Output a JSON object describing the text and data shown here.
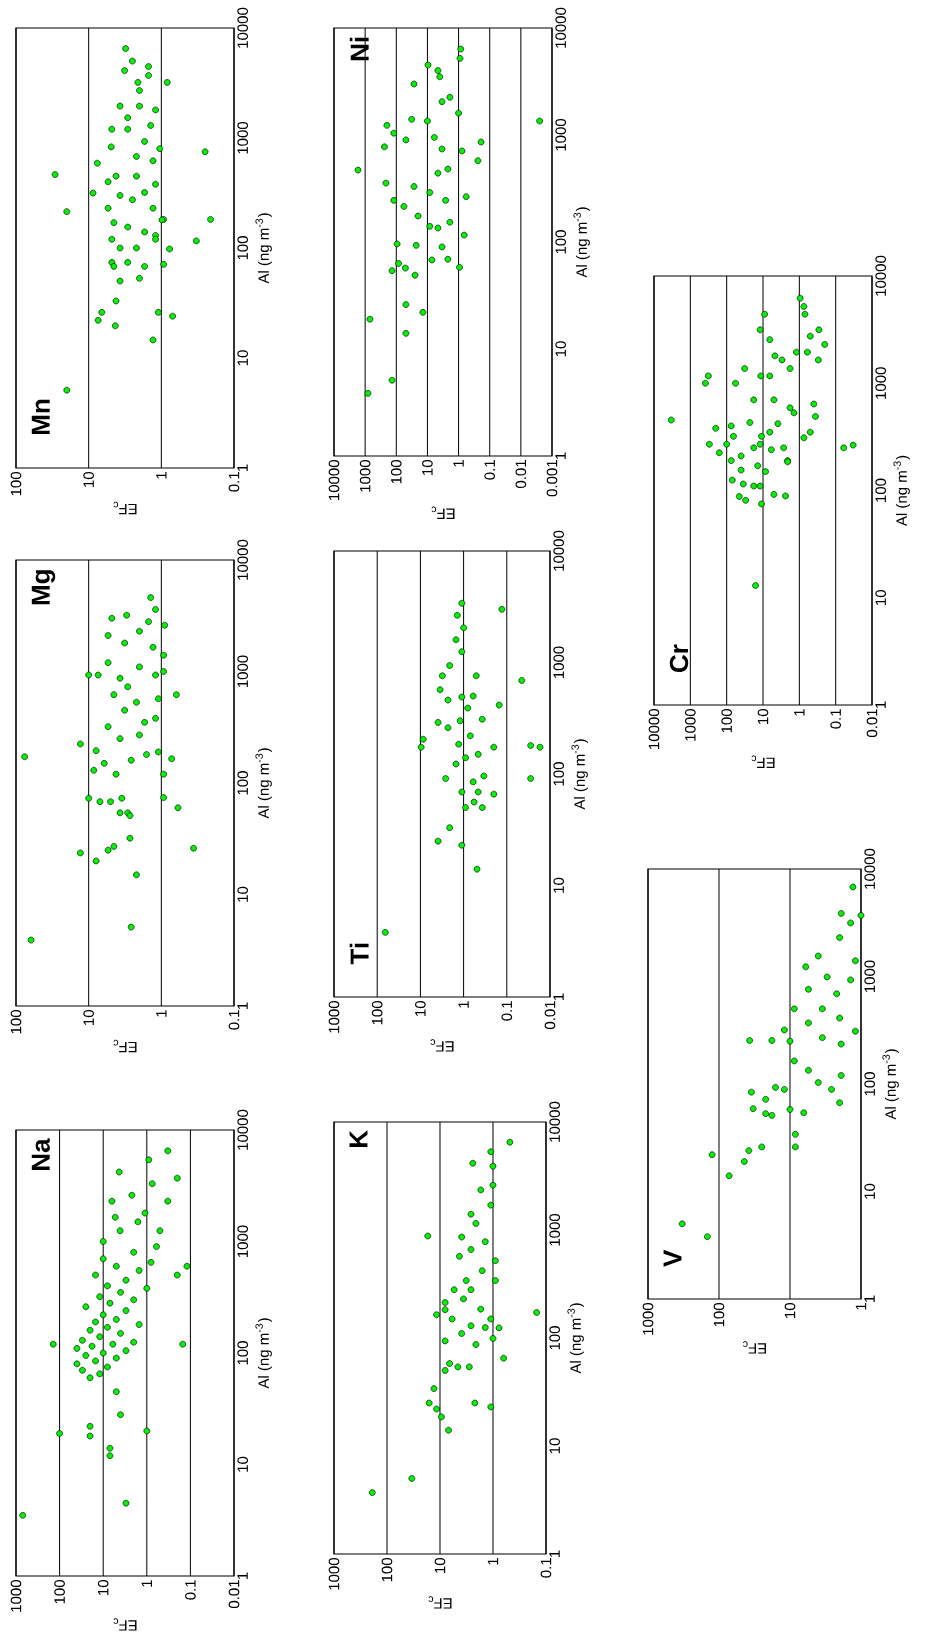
{
  "chart_data": [
    {
      "type": "scatter",
      "title": "Na",
      "xlabel": "EF$_{c}$",
      "ylabel": "Al (ng m$^{-3}$)",
      "log": "xy",
      "grid": "x",
      "marker": "circle",
      "color": "#00ee00",
      "xlim": [
        1000,
        0.01
      ],
      "ylim": [
        1,
        10000
      ],
      "xticks": [
        0.01,
        0.1,
        1,
        10,
        100,
        1000
      ],
      "yticks": [
        1,
        10,
        100,
        1000,
        10000
      ],
      "x": [
        700,
        3,
        7,
        7,
        20,
        100,
        1,
        20,
        4,
        5,
        20,
        12,
        30,
        8,
        40,
        15,
        5,
        25,
        10,
        3,
        40,
        18,
        6,
        2,
        30,
        12,
        4,
        20,
        8,
        1.5,
        15,
        5,
        10,
        3,
        25,
        7,
        2,
        12,
        4,
        1,
        8,
        3,
        15,
        1.5,
        5,
        0.8,
        10,
        2,
        0.6,
        140,
        0.15,
        0.12,
        0.2,
        4.3,
        0.33,
        0.9,
        0.2,
        6.3,
        5.3,
        2.2,
        0.75,
        0.33,
        1.1,
        10,
        4.1,
        0.5,
        1.6
      ],
      "values": [
        3.5,
        4.5,
        12,
        14,
        18,
        19,
        20,
        22,
        28,
        45,
        60,
        65,
        70,
        75,
        80,
        85,
        90,
        95,
        100,
        105,
        110,
        115,
        120,
        125,
        130,
        140,
        150,
        160,
        170,
        180,
        190,
        200,
        220,
        240,
        260,
        280,
        300,
        320,
        350,
        380,
        400,
        450,
        500,
        550,
        600,
        650,
        700,
        800,
        900,
        120,
        120,
        600,
        500,
        4200,
        6500,
        5400,
        3700,
        2300,
        1650,
        2600,
        3300,
        2300,
        1800,
        1000,
        1250,
        1250,
        1500
      ]
    },
    {
      "type": "scatter",
      "title": "Mg",
      "xlabel": "EF$_{c}$",
      "ylabel": "Al (ng m$^{-3}$)",
      "log": "xy",
      "grid": "x",
      "marker": "circle",
      "color": "#00ee00",
      "xlim": [
        100,
        0.1
      ],
      "ylim": [
        1,
        10000
      ],
      "xticks": [
        0.1,
        1,
        10,
        100
      ],
      "yticks": [
        1,
        10,
        100,
        1000,
        10000
      ],
      "x": [
        62,
        2.6,
        2.2,
        0.36,
        7.9,
        13,
        5.4,
        4.5,
        2.7,
        13,
        76,
        10,
        7,
        5,
        3.5,
        2.9,
        3.7,
        2.7,
        0.59,
        0.93,
        8.5,
        6.1,
        7.9,
        4.2,
        2.6,
        1.6,
        1.1,
        0.93,
        0.72,
        10,
        7.4,
        5.4,
        3.7,
        2.0,
        1.2,
        0.93,
        0.62,
        2.2,
        3.2,
        5.4,
        1.7,
        3.7,
        2.0,
        1.2,
        1.1,
        4.5,
        2.9,
        1.3,
        3.2,
        0.93,
        5.4,
        2.0,
        1.5,
        3.0,
        1.2,
        1.4,
        4.8,
        0.9
      ],
      "values": [
        3.9,
        5.1,
        15,
        26,
        20,
        23.6,
        25,
        27,
        32,
        224,
        172,
        73,
        68,
        68,
        73,
        54,
        54,
        51,
        60,
        74,
        130,
        150,
        195,
        120,
        160,
        180,
        190,
        120,
        165,
        930,
        930,
        1200,
        870,
        1100,
        930,
        1000,
        620,
        530,
        450,
        320,
        350,
        250,
        270,
        380,
        570,
        620,
        730,
        1650,
        1800,
        1400,
        2100,
        2300,
        2800,
        3200,
        3600,
        4600,
        3000,
        2600
      ]
    },
    {
      "type": "scatter",
      "title": "Mn",
      "xlabel": "EF$_{c}$",
      "ylabel": "Al (ng m$^{-3}$)",
      "log": "xy",
      "grid": "x",
      "marker": "circle",
      "color": "#00ee00",
      "xlim": [
        100,
        0.1
      ],
      "ylim": [
        1,
        10000
      ],
      "xticks": [
        0.1,
        1,
        10,
        100
      ],
      "yticks": [
        1,
        10,
        100,
        1000,
        10000
      ],
      "x": [
        20,
        29,
        20,
        7.6,
        8.7,
        1.3,
        1.1,
        0.7,
        7.4,
        6.6,
        4.3,
        4.2,
        3.7,
        2.0,
        0.93,
        0.77,
        0.33,
        0.21,
        0.25,
        0.83,
        3.1,
        0.93,
        1.05,
        1.4,
        1.5,
        1.5,
        2.5,
        2.1,
        3.2,
        3.7,
        2.0,
        2.9,
        4.8,
        4.9,
        1.7,
        4.2,
        2.2,
        1.3,
        5.4,
        3.7,
        2.5,
        1.7,
        1.2,
        1.3,
        5.4,
        4.5,
        2.9,
        1.7,
        1.2,
        0.98,
        4.8,
        3.7,
        2.2,
        1.2,
        2.9,
        4.8,
        1.7,
        4.5,
        2.9,
        2.0,
        1.2,
        2.2
      ],
      "values": [
        5.1,
        465,
        214,
        590,
        316,
        14.6,
        26,
        24,
        22,
        26,
        19.6,
        33,
        50,
        53,
        71,
        98,
        116,
        182,
        750,
        3200,
        6500,
        182,
        800,
        1300,
        4460,
        3700,
        5000,
        3200,
        4100,
        1950,
        1950,
        1200,
        1200,
        830,
        930,
        450,
        450,
        620,
        400,
        300,
        275,
        320,
        380,
        230,
        230,
        170,
        155,
        140,
        130,
        180,
        120,
        100,
        100,
        120,
        74,
        74,
        68,
        68,
        1530,
        2700,
        1800,
        680
      ]
    },
    {
      "type": "scatter",
      "title": "K",
      "xlabel": "EF$_{c}$",
      "ylabel": "Al (ng m$^{-3}$)",
      "log": "xy",
      "grid": "x",
      "marker": "circle",
      "color": "#00ee00",
      "xlim": [
        1000,
        0.1
      ],
      "ylim": [
        1,
        10000
      ],
      "xticks": [
        0.1,
        1,
        10,
        100,
        1000
      ],
      "yticks": [
        1,
        10,
        100,
        1000,
        10000
      ],
      "x": [
        190,
        34,
        6.9,
        9.4,
        11.6,
        16,
        13,
        2.2,
        1.1,
        8,
        6.6,
        4.6,
        2.8,
        0.63,
        0.15,
        0.77,
        1.0,
        8,
        11.6,
        8,
        8,
        17,
        2.4,
        0.48,
        1.1,
        1.0,
        1.7,
        1.1,
        2.1,
        3.9,
        2.6,
        4.3,
        0.9,
        1.6,
        3.2,
        5.4,
        0.9,
        3.6,
        1.7,
        5.9,
        2.6,
        3.9,
        1.4,
        2.1,
        1.1,
        2.6,
        1.4,
        2.6,
        1.0
      ],
      "values": [
        3.7,
        5.0,
        14,
        18.6,
        22,
        25,
        34,
        25,
        23,
        50,
        58,
        54,
        54,
        65,
        172,
        124,
        99,
        94,
        164,
        183,
        213,
        880,
        4150,
        6500,
        5300,
        3900,
        2350,
        1700,
        1150,
        860,
        660,
        570,
        520,
        420,
        340,
        280,
        340,
        230,
        185,
        150,
        130,
        110,
        125,
        87,
        150,
        280,
        780,
        1400,
        2600
      ]
    },
    {
      "type": "scatter",
      "title": "Ti",
      "xlabel": "EF$_{c}$",
      "ylabel": "Al (ng m$^{-3}$)",
      "log": "xy",
      "grid": "x",
      "marker": "circle",
      "color": "#00ee00",
      "xlim": [
        1000,
        0.01
      ],
      "ylim": [
        1,
        10000
      ],
      "xticks": [
        0.01,
        0.1,
        1,
        10,
        100,
        1000
      ],
      "yticks": [
        1,
        10,
        100,
        1000,
        10000
      ],
      "x": [
        65,
        0.49,
        3.9,
        2.1,
        1.1,
        9.6,
        8.6,
        0.028,
        0.028,
        0.017,
        0.045,
        0.15,
        0.2,
        0.2,
        0.13,
        0.37,
        0.9,
        0.57,
        0.46,
        0.34,
        0.6,
        1.1,
        2.6,
        1.5,
        0.9,
        0.46,
        0.7,
        0.37,
        3.9,
        2.3,
        1.2,
        0.6,
        3.5,
        2.3,
        1.1,
        3.1,
        0.51,
        2.1,
        1.1,
        1.5,
        1.0,
        1.4,
        1.1,
        0.8,
        1.3
      ],
      "values": [
        3.8,
        14,
        25,
        33,
        23,
        174,
        205,
        91,
        180,
        174,
        690,
        415,
        174,
        66,
        3000,
        50,
        50,
        56,
        69,
        96,
        85,
        69,
        91,
        123,
        140,
        150,
        220,
        310,
        290,
        260,
        300,
        500,
        570,
        460,
        490,
        760,
        760,
        940,
        1250,
        1600,
        2050,
        2650,
        3400,
        390,
        185
      ]
    },
    {
      "type": "scatter",
      "title": "Ni",
      "xlabel": "EF$_{c}$",
      "ylabel": "Al (ng m$^{-3}$)",
      "log": "xy",
      "grid": "x",
      "marker": "circle",
      "color": "#00ee00",
      "xlim": [
        10000,
        0.001
      ],
      "ylim": [
        1,
        10000
      ],
      "xticks": [
        0.001,
        0.01,
        0.1,
        1,
        10,
        100,
        1000,
        10000
      ],
      "yticks": [
        1,
        10,
        100,
        1000,
        10000
      ],
      "x": [
        810,
        137,
        700,
        49,
        49,
        14,
        137,
        25,
        51,
        85,
        7.2,
        2.2,
        0.93,
        23,
        94,
        3.4,
        0.66,
        8.4,
        1.9,
        20,
        57,
        120,
        215,
        1700,
        27,
        4.6,
        0.57,
        240,
        200,
        120,
        49,
        32,
        10,
        3.4,
        0.78,
        0.19,
        0.24,
        0.0025,
        27,
        9.6,
        4.6,
        4,
        0.85,
        0.9,
        1.9,
        3.4,
        1.0,
        6,
        2.2,
        8.4,
        2.6,
        4.6
      ],
      "values": [
        3.85,
        5.1,
        19,
        14,
        26,
        22,
        54,
        49,
        57,
        63,
        68,
        69,
        58,
        93,
        96,
        90,
        116,
        140,
        153,
        175,
        215,
        245,
        355,
        470,
        330,
        440,
        265,
        775,
        1230,
        1040,
        900,
        1400,
        1350,
        740,
        710,
        860,
        575,
        1350,
        3000,
        4500,
        4000,
        3500,
        6350,
        5200,
        2250,
        2050,
        1600,
        950,
        480,
        290,
        245,
        135
      ]
    },
    {
      "type": "scatter",
      "title": "V",
      "xlabel": "EF$_{c}$",
      "ylabel": "Al (ng m$^{-3}$)",
      "log": "xy",
      "grid": "x",
      "marker": "circle",
      "color": "#00ee00",
      "xlim": [
        1000,
        1
      ],
      "ylim": [
        1,
        10000
      ],
      "xticks": [
        1,
        10,
        100,
        1000
      ],
      "yticks": [
        1,
        10,
        100,
        1000,
        10000
      ],
      "x": [
        330,
        146,
        125,
        72,
        44,
        38,
        25,
        8.4,
        8.4,
        37,
        18,
        33,
        22,
        18,
        35,
        22,
        16,
        12,
        6.4,
        10,
        2.0,
        2.6,
        1.9,
        4.0,
        5.5,
        8.7,
        10,
        12,
        5.5,
        3.5,
        1.9,
        1.2,
        8.7,
        6,
        4,
        3,
        2.2,
        1.4,
        1.2,
        2.0,
        1.4,
        1.9,
        1.3,
        1.0,
        3.5,
        5.5,
        2.0
      ],
      "values": [
        5.0,
        3.8,
        22,
        14,
        19,
        24,
        26,
        34,
        26,
        254,
        254,
        59,
        53,
        51,
        84,
        72,
        93,
        89,
        54,
        58,
        67,
        89,
        120,
        103,
        134,
        164,
        250,
        318,
        370,
        270,
        235,
        310,
        500,
        1230,
        1550,
        990,
        690,
        930,
        1400,
        2300,
        3150,
        3860,
        6800,
        3700,
        500,
        760,
        410
      ]
    },
    {
      "type": "scatter",
      "title": "Cr",
      "xlabel": "EF$_{c}$",
      "ylabel": "Al (ng m$^{-3}$)",
      "log": "xy",
      "grid": "x",
      "marker": "circle",
      "color": "#00ee00",
      "xlim": [
        10000,
        0.01
      ],
      "ylim": [
        1,
        10000
      ],
      "xticks": [
        0.01,
        0.1,
        1,
        10,
        100,
        1000,
        10000
      ],
      "yticks": [
        1,
        10,
        100,
        1000,
        10000
      ],
      "x": [
        3350,
        16,
        385,
        320,
        57,
        32,
        12,
        9,
        6.5,
        4.7,
        0.95,
        0.75,
        0.7,
        0.29,
        0.2,
        0.3,
        0.6,
        0.5,
        1.2,
        3,
        1.8,
        6.5,
        11.5,
        5,
        18,
        1.8,
        0.4,
        0.36,
        0.5,
        1.4,
        3.9,
        6.5,
        11,
        23,
        75,
        200,
        65,
        300,
        160,
        100,
        40,
        18,
        12,
        5.9,
        2.7,
        2.1,
        0.06,
        0.033,
        0.75,
        75,
        40,
        14,
        8.5,
        70,
        35,
        18,
        5,
        2.1,
        45,
        30,
        11,
        2.4,
        12
      ],
      "values": [
        454,
        13,
        1000,
        1170,
        1000,
        1370,
        3150,
        4400,
        2550,
        1800,
        6200,
        5200,
        4400,
        3150,
        2300,
        1650,
        1950,
        2750,
        1950,
        1650,
        1370,
        1170,
        1170,
        700,
        700,
        590,
        640,
        490,
        350,
        530,
        420,
        350,
        320,
        430,
        400,
        380,
        320,
        270,
        225,
        270,
        210,
        250,
        270,
        240,
        250,
        190,
        250,
        265,
        310,
        190,
        155,
        170,
        150,
        125,
        115,
        110,
        92,
        185,
        88,
        81,
        75,
        89,
        110
      ]
    }
  ]
}
